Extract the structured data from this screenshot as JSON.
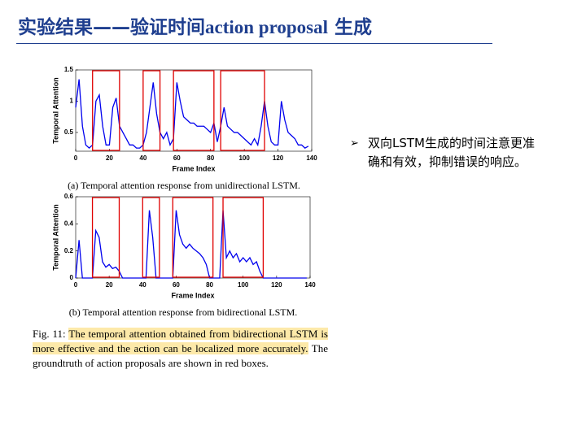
{
  "title": [
    "实验结果——验证时间",
    "action proposal",
    "生成"
  ],
  "bullet": "双向LSTM生成的时间注意更准确和有效，抑制错误的响应。",
  "caption": [
    "Fig. 11:",
    "The temporal attention obtained from bidirectional LSTM is more effective and the action can be localized more accurately.",
    "The groundtruth of action proposals are shown in red boxes."
  ],
  "chart_data": [
    {
      "type": "line",
      "subcaption": "(a) Temporal attention response from unidirectional LSTM.",
      "x_label": "Frame Index",
      "y_label": "Temporal Attention",
      "x": [
        0,
        2,
        4,
        6,
        8,
        10,
        12,
        14,
        16,
        18,
        20,
        22,
        24,
        26,
        28,
        30,
        32,
        34,
        36,
        38,
        40,
        42,
        44,
        46,
        48,
        50,
        52,
        54,
        56,
        58,
        60,
        62,
        64,
        66,
        68,
        70,
        72,
        74,
        76,
        78,
        80,
        82,
        84,
        86,
        88,
        90,
        92,
        94,
        96,
        98,
        100,
        102,
        104,
        106,
        108,
        110,
        112,
        114,
        116,
        118,
        120,
        122,
        124,
        126,
        128,
        130,
        132,
        134,
        136,
        138
      ],
      "series": [
        {
          "color": "#0000ee",
          "values": [
            0.9,
            1.35,
            0.6,
            0.3,
            0.25,
            0.3,
            1.0,
            1.1,
            0.6,
            0.3,
            0.3,
            0.9,
            1.05,
            0.6,
            0.5,
            0.4,
            0.3,
            0.3,
            0.25,
            0.25,
            0.3,
            0.5,
            0.9,
            1.3,
            0.8,
            0.5,
            0.4,
            0.5,
            0.3,
            0.4,
            1.3,
            1.0,
            0.75,
            0.7,
            0.65,
            0.65,
            0.6,
            0.6,
            0.6,
            0.55,
            0.5,
            0.65,
            0.35,
            0.6,
            0.9,
            0.6,
            0.55,
            0.5,
            0.5,
            0.45,
            0.4,
            0.35,
            0.3,
            0.4,
            0.3,
            0.6,
            1.0,
            0.6,
            0.35,
            0.3,
            0.3,
            1.0,
            0.7,
            0.5,
            0.45,
            0.4,
            0.3,
            0.3,
            0.25,
            0.28
          ]
        }
      ],
      "boxes": [
        [
          10,
          26
        ],
        [
          40,
          50
        ],
        [
          58,
          82
        ],
        [
          86,
          112
        ]
      ],
      "box_color": "#e00000",
      "xlim": [
        0,
        140
      ],
      "ylim": [
        0.2,
        1.5
      ],
      "xticks": [
        0,
        20,
        40,
        60,
        80,
        100,
        120,
        140
      ],
      "yticks": [
        0.5,
        1,
        1.5
      ]
    },
    {
      "type": "line",
      "subcaption": "(b) Temporal attention response from bidirectional LSTM.",
      "x_label": "Frame Index",
      "y_label": "Temporal Attention",
      "x": [
        0,
        2,
        4,
        6,
        8,
        10,
        12,
        14,
        16,
        18,
        20,
        22,
        24,
        26,
        28,
        30,
        32,
        34,
        36,
        38,
        40,
        42,
        44,
        46,
        48,
        50,
        52,
        54,
        56,
        58,
        60,
        62,
        64,
        66,
        68,
        70,
        72,
        74,
        76,
        78,
        80,
        82,
        84,
        86,
        88,
        90,
        92,
        94,
        96,
        98,
        100,
        102,
        104,
        106,
        108,
        110,
        112,
        114,
        116,
        118,
        120,
        122,
        124,
        126,
        128,
        130,
        132,
        134,
        136,
        138
      ],
      "series": [
        {
          "color": "#0000ee",
          "values": [
            0,
            0.28,
            0,
            0,
            0,
            0,
            0.35,
            0.3,
            0.12,
            0.08,
            0.1,
            0.07,
            0.08,
            0.05,
            0,
            0,
            0,
            0,
            0,
            0,
            0,
            0,
            0.5,
            0.3,
            0,
            0,
            0,
            0,
            0,
            0,
            0.5,
            0.32,
            0.25,
            0.22,
            0.25,
            0.22,
            0.2,
            0.18,
            0.15,
            0.1,
            0,
            0,
            0,
            0,
            0.5,
            0.15,
            0.2,
            0.15,
            0.18,
            0.12,
            0.15,
            0.12,
            0.15,
            0.1,
            0.12,
            0.05,
            0,
            0,
            0,
            0,
            0,
            0,
            0,
            0,
            0,
            0,
            0,
            0,
            0,
            0
          ]
        }
      ],
      "boxes": [
        [
          10,
          26
        ],
        [
          40,
          50
        ],
        [
          58,
          82
        ],
        [
          88,
          112
        ]
      ],
      "box_color": "#e00000",
      "xlim": [
        0,
        140
      ],
      "ylim": [
        0,
        0.6
      ],
      "xticks": [
        0,
        20,
        40,
        60,
        80,
        100,
        120,
        140
      ],
      "yticks": [
        0,
        0.2,
        0.4,
        0.6
      ]
    }
  ]
}
